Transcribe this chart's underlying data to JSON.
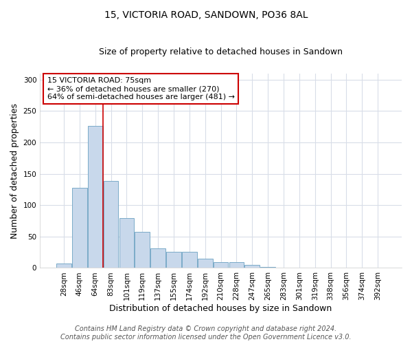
{
  "title": "15, VICTORIA ROAD, SANDOWN, PO36 8AL",
  "subtitle": "Size of property relative to detached houses in Sandown",
  "xlabel": "Distribution of detached houses by size in Sandown",
  "ylabel": "Number of detached properties",
  "bar_labels": [
    "28sqm",
    "46sqm",
    "64sqm",
    "83sqm",
    "101sqm",
    "119sqm",
    "137sqm",
    "155sqm",
    "174sqm",
    "192sqm",
    "210sqm",
    "228sqm",
    "247sqm",
    "265sqm",
    "283sqm",
    "301sqm",
    "319sqm",
    "338sqm",
    "356sqm",
    "374sqm",
    "392sqm"
  ],
  "bar_values": [
    7,
    128,
    226,
    139,
    80,
    58,
    31,
    26,
    26,
    15,
    9,
    9,
    5,
    2,
    0,
    1,
    0,
    0,
    1,
    0,
    0
  ],
  "bar_color": "#c8d8eb",
  "bar_edgecolor": "#7aaac8",
  "vline_color": "#cc0000",
  "ylim": [
    0,
    310
  ],
  "yticks": [
    0,
    50,
    100,
    150,
    200,
    250,
    300
  ],
  "annotation_text": "15 VICTORIA ROAD: 75sqm\n← 36% of detached houses are smaller (270)\n64% of semi-detached houses are larger (481) →",
  "annotation_box_facecolor": "white",
  "annotation_box_edgecolor": "#cc0000",
  "plot_bg": "white",
  "fig_bg": "white",
  "grid_color": "#d8dde8",
  "title_fontsize": 10,
  "subtitle_fontsize": 9,
  "axis_label_fontsize": 9,
  "tick_fontsize": 7.5,
  "annotation_fontsize": 8,
  "footer_fontsize": 7,
  "footer_line1": "Contains HM Land Registry data © Crown copyright and database right 2024.",
  "footer_line2": "Contains public sector information licensed under the Open Government Licence v3.0."
}
